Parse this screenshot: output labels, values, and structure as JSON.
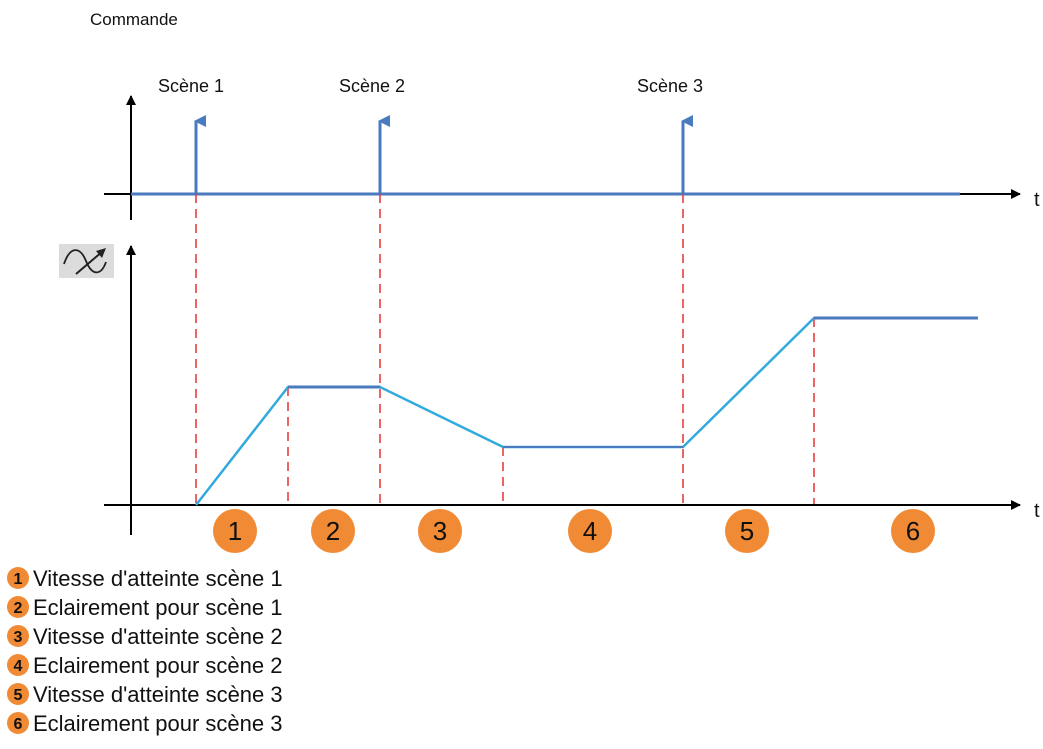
{
  "title": "Commande",
  "axis_label": "t",
  "scenes": [
    "Scène 1",
    "Scène 2",
    "Scène 3"
  ],
  "phases": [
    "1",
    "2",
    "3",
    "4",
    "5",
    "6"
  ],
  "legend": [
    {
      "num": "1",
      "text": "Vitesse d'atteinte scène 1"
    },
    {
      "num": "2",
      "text": "Eclairement pour scène 1"
    },
    {
      "num": "3",
      "text": "Vitesse d'atteinte scène 2"
    },
    {
      "num": "4",
      "text": "Eclairement pour scène 2"
    },
    {
      "num": "5",
      "text": "Vitesse d'atteinte scène 3"
    },
    {
      "num": "6",
      "text": "Eclairement pour scène 3"
    }
  ],
  "icons": {
    "dimmer": "dimmer-curve-icon"
  },
  "colors": {
    "command": "#4a7bbf",
    "light_curve": "#33aadd",
    "markers": "#e63232",
    "badge": "#f08a35",
    "axes": "#000000"
  }
}
